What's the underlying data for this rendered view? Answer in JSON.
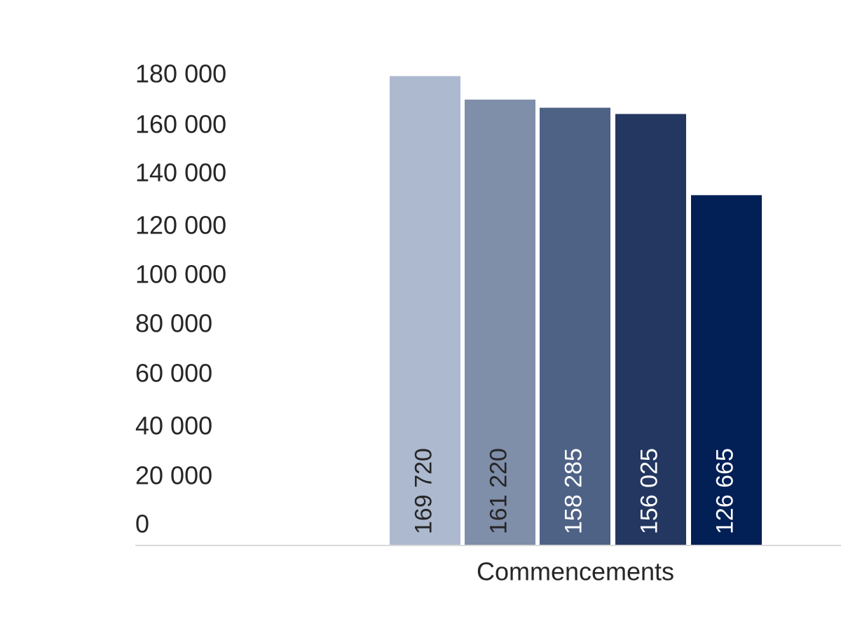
{
  "chart_data": {
    "type": "bar",
    "categories": [
      "Commencements"
    ],
    "series": [
      {
        "values": [
          169720
        ],
        "value_label": "169 720",
        "color": "#adb9cf"
      },
      {
        "values": [
          161220
        ],
        "value_label": "161 220",
        "color": "#7f8ea9"
      },
      {
        "values": [
          158285
        ],
        "value_label": "158 285",
        "color": "#4e6286"
      },
      {
        "values": [
          156025
        ],
        "value_label": "156 025",
        "color": "#233760"
      },
      {
        "values": [
          126665
        ],
        "value_label": "126 665",
        "color": "#021f56"
      }
    ],
    "ylim": [
      0,
      180000
    ],
    "yticks": [
      0,
      20000,
      40000,
      60000,
      80000,
      100000,
      120000,
      140000,
      160000,
      180000
    ],
    "ytick_labels": [
      "0",
      "20 000",
      "40 000",
      "60 000",
      "80 000",
      "100 000",
      "120 000",
      "140 000",
      "160 000",
      "180 000"
    ],
    "title": "",
    "xlabel": "",
    "ylabel": "",
    "grid": false,
    "legend": "none",
    "axis_color": "#d9d9d9",
    "label_colors": {
      "light": "#ffffff",
      "dark": "#262626"
    }
  }
}
